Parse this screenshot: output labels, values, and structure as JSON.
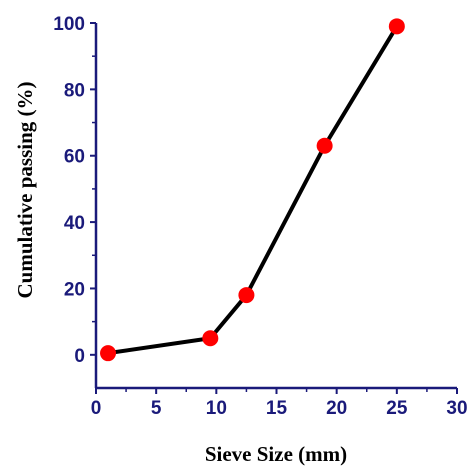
{
  "chart_data": {
    "type": "line",
    "title": "",
    "xlabel": "Sieve Size (mm)",
    "ylabel": "Cumulative passing (%)",
    "xlim": [
      0,
      30
    ],
    "ylim": [
      -10,
      100
    ],
    "xticks": [
      0,
      5,
      10,
      15,
      20,
      25,
      30
    ],
    "yticks": [
      0,
      20,
      40,
      60,
      80,
      100
    ],
    "grid": false,
    "legend": "none",
    "series": [
      {
        "x": [
          1,
          9.5,
          12.5,
          19,
          25
        ],
        "y": [
          0.5,
          5,
          18,
          63,
          99
        ]
      }
    ],
    "colors": {
      "axis": "#1a1a7a",
      "line": "#000000",
      "marker": "#ff0000"
    }
  }
}
